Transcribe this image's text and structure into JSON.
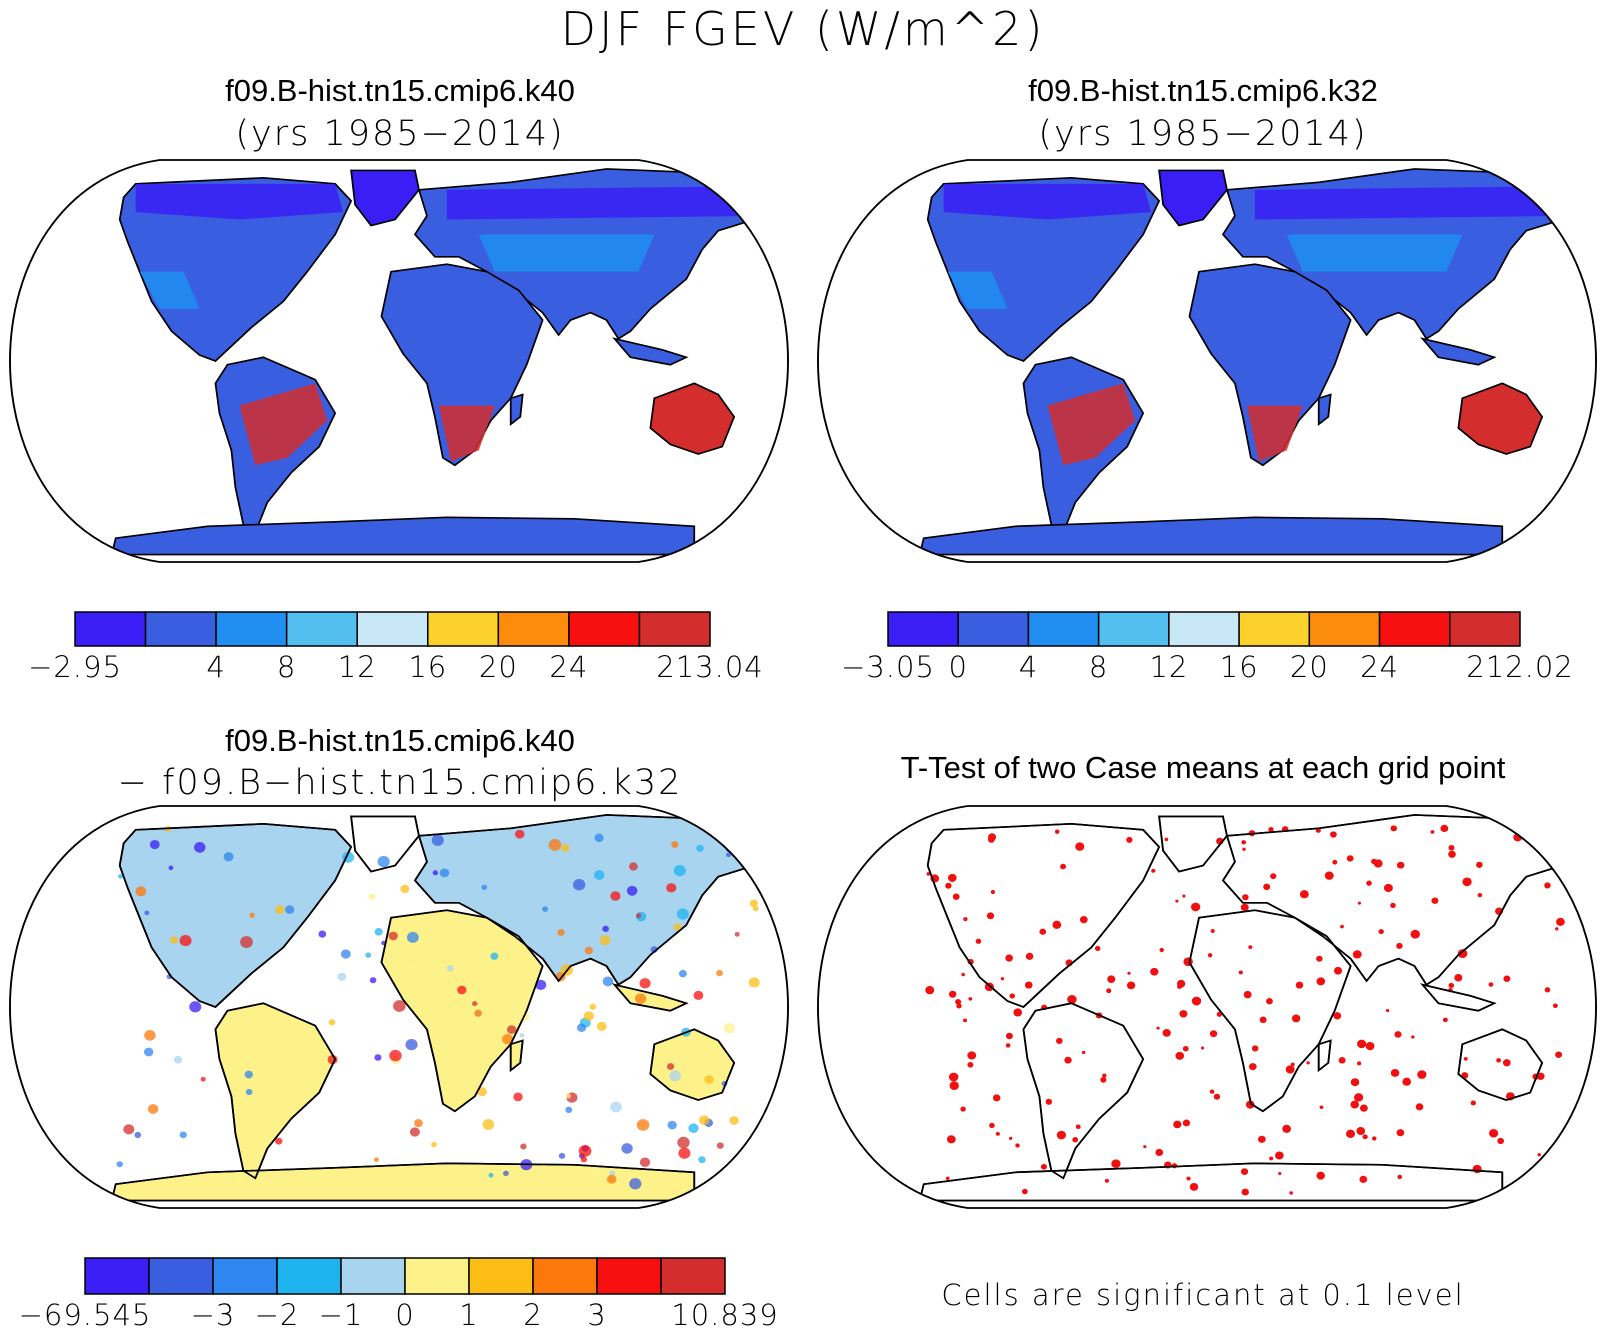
{
  "figure": {
    "title": "DJF FGEV (W/m^2)"
  },
  "panels": [
    {
      "title": "f09.B-hist.tn15.cmip6.k40",
      "subtitle": "(yrs 1985−2014)",
      "colorbar": {
        "colors": [
          "#3a1ef5",
          "#3a5ee0",
          "#1f8ef0",
          "#52bff0",
          "#c8e8f8",
          "#fcd12b",
          "#fc8c0b",
          "#f81010",
          "#d42d2d"
        ],
        "labels": [
          "−2.95",
          "4",
          "8",
          "12",
          "16",
          "20",
          "24",
          "213.04"
        ],
        "label_edges": [
          0,
          2,
          3,
          4,
          5,
          6,
          7,
          9
        ]
      }
    },
    {
      "title": "f09.B-hist.tn15.cmip6.k32",
      "subtitle": "(yrs 1985−2014)",
      "colorbar": {
        "colors": [
          "#3a1ef5",
          "#3a5ee0",
          "#1f8ef0",
          "#52bff0",
          "#c8e8f8",
          "#fcd12b",
          "#fc8c0b",
          "#f81010",
          "#d42d2d"
        ],
        "labels": [
          "−3.05",
          "0",
          "4",
          "8",
          "12",
          "16",
          "20",
          "24",
          "212.02"
        ],
        "label_edges": [
          0,
          1,
          2,
          3,
          4,
          5,
          6,
          7,
          9
        ]
      }
    },
    {
      "title": "f09.B-hist.tn15.cmip6.k40",
      "subtitle": "− f09.B−hist.tn15.cmip6.k32",
      "colorbar": {
        "colors": [
          "#3a1ef5",
          "#3a5ee0",
          "#2f86f0",
          "#1fb4f0",
          "#a8d4f0",
          "#fdf28a",
          "#fcbe14",
          "#fc780b",
          "#f81010",
          "#d42d2d"
        ],
        "labels": [
          "−69.545",
          "−3",
          "−2",
          "−1",
          "0",
          "1",
          "2",
          "3",
          "10.839"
        ],
        "label_edges": [
          0,
          2,
          3,
          4,
          5,
          6,
          7,
          8,
          10
        ]
      }
    },
    {
      "title": "T-Test of two Case means at each grid point",
      "note": "Cells are significant at 0.1 level",
      "significance_color": "#f01010"
    }
  ]
}
